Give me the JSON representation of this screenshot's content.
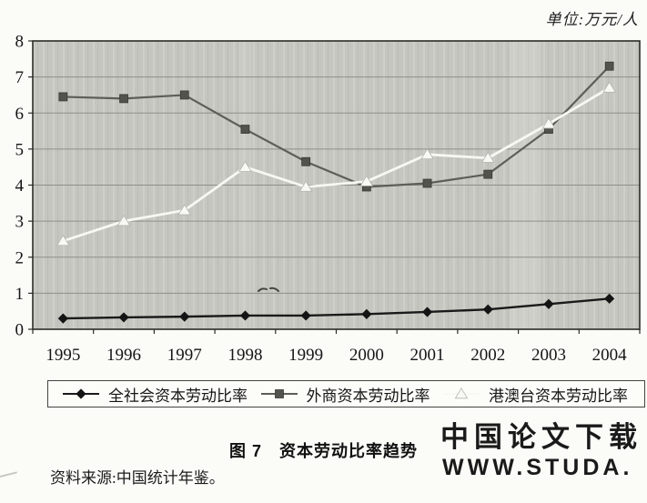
{
  "page": {
    "caption": "图 7　资本劳动比率趋势",
    "source_note": "资料来源:中国统计年鉴。"
  },
  "watermark": {
    "line1": "中国论文下载",
    "line2": "WWW.STUDA.",
    "line1_color": "#f0a4a4",
    "line2_color": "#f8cbcb"
  },
  "chart_data": {
    "type": "line",
    "title": "图 7　资本劳动比率趋势",
    "unit_label": "单位:万元/人",
    "x": [
      1995,
      1996,
      1997,
      1998,
      1999,
      2000,
      2001,
      2002,
      2003,
      2004
    ],
    "xlabel": "",
    "ylabel": "",
    "ylim": [
      0,
      8
    ],
    "yticks": [
      0,
      1,
      2,
      3,
      4,
      5,
      6,
      7,
      8
    ],
    "grid": true,
    "legend_position": "bottom-box",
    "plot_bg_color": "#c6c6c1",
    "gridline_color": "#8f8f8a",
    "axis_color": "#2b2b27",
    "series": [
      {
        "name": "全社会资本劳动比率",
        "marker": "diamond",
        "color": "#1a1a1a",
        "values": [
          0.3,
          0.33,
          0.35,
          0.38,
          0.38,
          0.42,
          0.48,
          0.55,
          0.7,
          0.85
        ]
      },
      {
        "name": "外商资本劳动比率",
        "marker": "square",
        "color": "#5e5e58",
        "values": [
          6.45,
          6.4,
          6.5,
          5.55,
          4.65,
          3.95,
          4.05,
          4.3,
          5.55,
          7.3
        ]
      },
      {
        "name": "港澳台资本劳动比率",
        "marker": "triangle",
        "color": "#f7f7f3",
        "values": [
          2.45,
          3.0,
          3.3,
          4.5,
          3.95,
          4.1,
          4.85,
          4.75,
          5.7,
          6.7
        ]
      }
    ]
  }
}
